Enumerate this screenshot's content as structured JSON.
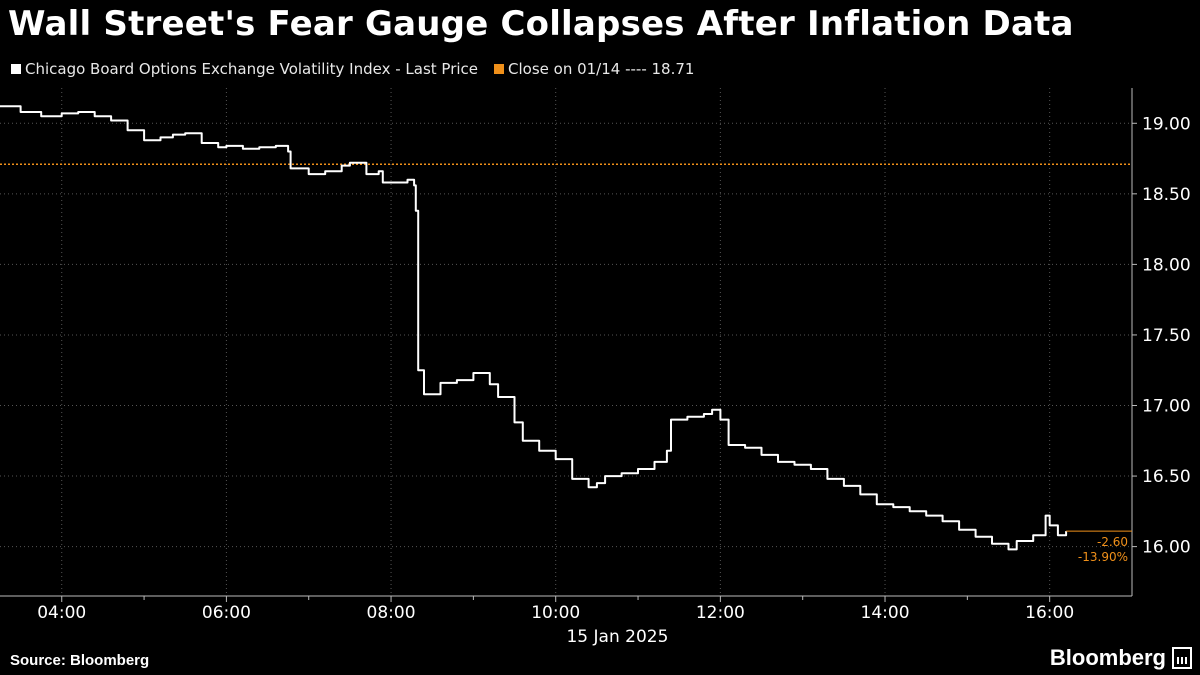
{
  "title": "Wall Street's Fear Gauge Collapses After Inflation Data",
  "legend": {
    "marker_text": "⁲",
    "series_label": "Chicago Board Options Exchange Volatility Index - Last Price",
    "reference_label": "Close on 01/14 ---- 18.71"
  },
  "source": "Source: Bloomberg",
  "brand": "Bloomberg",
  "colors": {
    "background": "#000000",
    "series": "#ffffff",
    "reference": "#f0901a",
    "grid": "#555555"
  },
  "chart_data": {
    "type": "line",
    "date_label": "15 Jan 2025",
    "xlabel": "",
    "ylabel": "",
    "x_ticks": [
      "04:00",
      "06:00",
      "08:00",
      "10:00",
      "12:00",
      "14:00",
      "16:00"
    ],
    "x_tick_values": [
      4,
      6,
      8,
      10,
      12,
      14,
      16
    ],
    "xlim": [
      3.25,
      17.0
    ],
    "y_ticks": [
      "16.00",
      "16.50",
      "17.00",
      "17.50",
      "18.00",
      "18.50",
      "19.00"
    ],
    "y_tick_values": [
      16.0,
      16.5,
      17.0,
      17.5,
      18.0,
      18.5,
      19.0
    ],
    "ylim": [
      15.65,
      19.25
    ],
    "grid": true,
    "reference_line": {
      "value": 18.71,
      "label": "Close on 01/14"
    },
    "annotations": {
      "change": "-2.60",
      "pct_change": "-13.90%",
      "last_value": 16.11
    },
    "series": [
      {
        "name": "Chicago Board Options Exchange Volatility Index - Last Price",
        "x": [
          3.25,
          3.5,
          3.75,
          4.0,
          4.2,
          4.4,
          4.6,
          4.8,
          5.0,
          5.2,
          5.35,
          5.5,
          5.7,
          5.9,
          6.0,
          6.2,
          6.4,
          6.6,
          6.75,
          6.78,
          7.0,
          7.2,
          7.4,
          7.5,
          7.7,
          7.85,
          7.9,
          8.0,
          8.2,
          8.28,
          8.3,
          8.33,
          8.4,
          8.6,
          8.8,
          9.0,
          9.2,
          9.3,
          9.5,
          9.6,
          9.8,
          10.0,
          10.2,
          10.4,
          10.5,
          10.6,
          10.8,
          11.0,
          11.2,
          11.35,
          11.4,
          11.6,
          11.8,
          11.9,
          12.0,
          12.1,
          12.3,
          12.5,
          12.7,
          12.9,
          13.1,
          13.3,
          13.5,
          13.7,
          13.9,
          14.1,
          14.3,
          14.5,
          14.7,
          14.9,
          15.1,
          15.3,
          15.5,
          15.6,
          15.8,
          15.95,
          16.0,
          16.1,
          16.2
        ],
        "y": [
          19.12,
          19.08,
          19.05,
          19.07,
          19.08,
          19.05,
          19.02,
          18.95,
          18.88,
          18.9,
          18.92,
          18.93,
          18.86,
          18.83,
          18.84,
          18.82,
          18.83,
          18.84,
          18.8,
          18.68,
          18.64,
          18.66,
          18.7,
          18.72,
          18.64,
          18.66,
          18.58,
          18.58,
          18.6,
          18.56,
          18.38,
          17.25,
          17.08,
          17.16,
          17.18,
          17.23,
          17.15,
          17.06,
          16.88,
          16.75,
          16.68,
          16.62,
          16.48,
          16.42,
          16.45,
          16.5,
          16.52,
          16.55,
          16.6,
          16.68,
          16.9,
          16.92,
          16.94,
          16.97,
          16.9,
          16.72,
          16.7,
          16.65,
          16.6,
          16.58,
          16.55,
          16.48,
          16.43,
          16.37,
          16.3,
          16.28,
          16.25,
          16.22,
          16.18,
          16.12,
          16.07,
          16.02,
          15.98,
          16.04,
          16.08,
          16.22,
          16.15,
          16.08,
          16.11
        ]
      }
    ]
  }
}
